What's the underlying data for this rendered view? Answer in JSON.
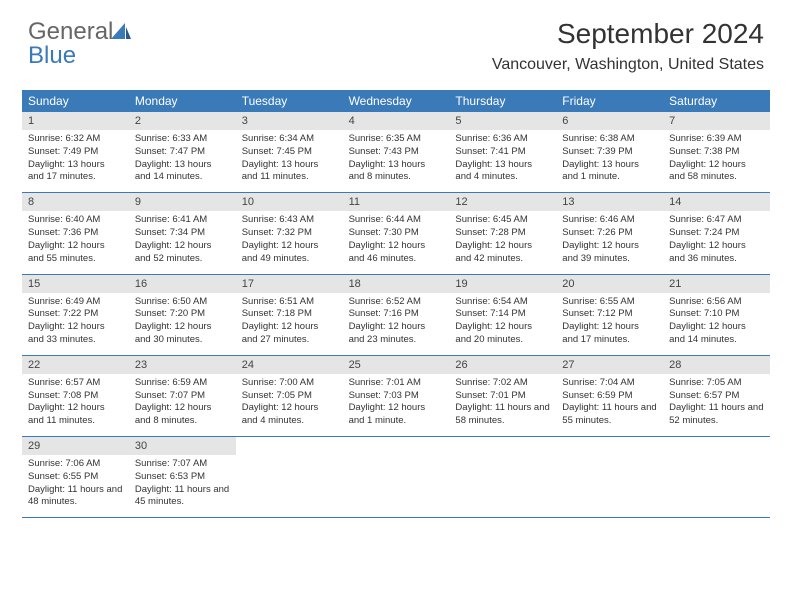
{
  "brand": {
    "word1": "General",
    "word2": "Blue",
    "icon_color": "#3a7ab8"
  },
  "header": {
    "title": "September 2024",
    "location": "Vancouver, Washington, United States"
  },
  "columns": [
    "Sunday",
    "Monday",
    "Tuesday",
    "Wednesday",
    "Thursday",
    "Friday",
    "Saturday"
  ],
  "styling": {
    "header_bg": "#3a7ab8",
    "header_fg": "#ffffff",
    "daynum_bg": "#e5e5e5",
    "row_border": "#3a7ab8",
    "title_fontsize": 28,
    "location_fontsize": 16,
    "dayheader_fontsize": 12,
    "daynum_fontsize": 11,
    "body_fontsize": 9.5,
    "background": "#ffffff",
    "text_color": "#333333"
  },
  "weeks": [
    [
      {
        "n": "1",
        "sunrise": "6:32 AM",
        "sunset": "7:49 PM",
        "daylight": "13 hours and 17 minutes."
      },
      {
        "n": "2",
        "sunrise": "6:33 AM",
        "sunset": "7:47 PM",
        "daylight": "13 hours and 14 minutes."
      },
      {
        "n": "3",
        "sunrise": "6:34 AM",
        "sunset": "7:45 PM",
        "daylight": "13 hours and 11 minutes."
      },
      {
        "n": "4",
        "sunrise": "6:35 AM",
        "sunset": "7:43 PM",
        "daylight": "13 hours and 8 minutes."
      },
      {
        "n": "5",
        "sunrise": "6:36 AM",
        "sunset": "7:41 PM",
        "daylight": "13 hours and 4 minutes."
      },
      {
        "n": "6",
        "sunrise": "6:38 AM",
        "sunset": "7:39 PM",
        "daylight": "13 hours and 1 minute."
      },
      {
        "n": "7",
        "sunrise": "6:39 AM",
        "sunset": "7:38 PM",
        "daylight": "12 hours and 58 minutes."
      }
    ],
    [
      {
        "n": "8",
        "sunrise": "6:40 AM",
        "sunset": "7:36 PM",
        "daylight": "12 hours and 55 minutes."
      },
      {
        "n": "9",
        "sunrise": "6:41 AM",
        "sunset": "7:34 PM",
        "daylight": "12 hours and 52 minutes."
      },
      {
        "n": "10",
        "sunrise": "6:43 AM",
        "sunset": "7:32 PM",
        "daylight": "12 hours and 49 minutes."
      },
      {
        "n": "11",
        "sunrise": "6:44 AM",
        "sunset": "7:30 PM",
        "daylight": "12 hours and 46 minutes."
      },
      {
        "n": "12",
        "sunrise": "6:45 AM",
        "sunset": "7:28 PM",
        "daylight": "12 hours and 42 minutes."
      },
      {
        "n": "13",
        "sunrise": "6:46 AM",
        "sunset": "7:26 PM",
        "daylight": "12 hours and 39 minutes."
      },
      {
        "n": "14",
        "sunrise": "6:47 AM",
        "sunset": "7:24 PM",
        "daylight": "12 hours and 36 minutes."
      }
    ],
    [
      {
        "n": "15",
        "sunrise": "6:49 AM",
        "sunset": "7:22 PM",
        "daylight": "12 hours and 33 minutes."
      },
      {
        "n": "16",
        "sunrise": "6:50 AM",
        "sunset": "7:20 PM",
        "daylight": "12 hours and 30 minutes."
      },
      {
        "n": "17",
        "sunrise": "6:51 AM",
        "sunset": "7:18 PM",
        "daylight": "12 hours and 27 minutes."
      },
      {
        "n": "18",
        "sunrise": "6:52 AM",
        "sunset": "7:16 PM",
        "daylight": "12 hours and 23 minutes."
      },
      {
        "n": "19",
        "sunrise": "6:54 AM",
        "sunset": "7:14 PM",
        "daylight": "12 hours and 20 minutes."
      },
      {
        "n": "20",
        "sunrise": "6:55 AM",
        "sunset": "7:12 PM",
        "daylight": "12 hours and 17 minutes."
      },
      {
        "n": "21",
        "sunrise": "6:56 AM",
        "sunset": "7:10 PM",
        "daylight": "12 hours and 14 minutes."
      }
    ],
    [
      {
        "n": "22",
        "sunrise": "6:57 AM",
        "sunset": "7:08 PM",
        "daylight": "12 hours and 11 minutes."
      },
      {
        "n": "23",
        "sunrise": "6:59 AM",
        "sunset": "7:07 PM",
        "daylight": "12 hours and 8 minutes."
      },
      {
        "n": "24",
        "sunrise": "7:00 AM",
        "sunset": "7:05 PM",
        "daylight": "12 hours and 4 minutes."
      },
      {
        "n": "25",
        "sunrise": "7:01 AM",
        "sunset": "7:03 PM",
        "daylight": "12 hours and 1 minute."
      },
      {
        "n": "26",
        "sunrise": "7:02 AM",
        "sunset": "7:01 PM",
        "daylight": "11 hours and 58 minutes."
      },
      {
        "n": "27",
        "sunrise": "7:04 AM",
        "sunset": "6:59 PM",
        "daylight": "11 hours and 55 minutes."
      },
      {
        "n": "28",
        "sunrise": "7:05 AM",
        "sunset": "6:57 PM",
        "daylight": "11 hours and 52 minutes."
      }
    ],
    [
      {
        "n": "29",
        "sunrise": "7:06 AM",
        "sunset": "6:55 PM",
        "daylight": "11 hours and 48 minutes."
      },
      {
        "n": "30",
        "sunrise": "7:07 AM",
        "sunset": "6:53 PM",
        "daylight": "11 hours and 45 minutes."
      },
      null,
      null,
      null,
      null,
      null
    ]
  ],
  "labels": {
    "sunrise": "Sunrise: ",
    "sunset": "Sunset: ",
    "daylight": "Daylight: "
  }
}
